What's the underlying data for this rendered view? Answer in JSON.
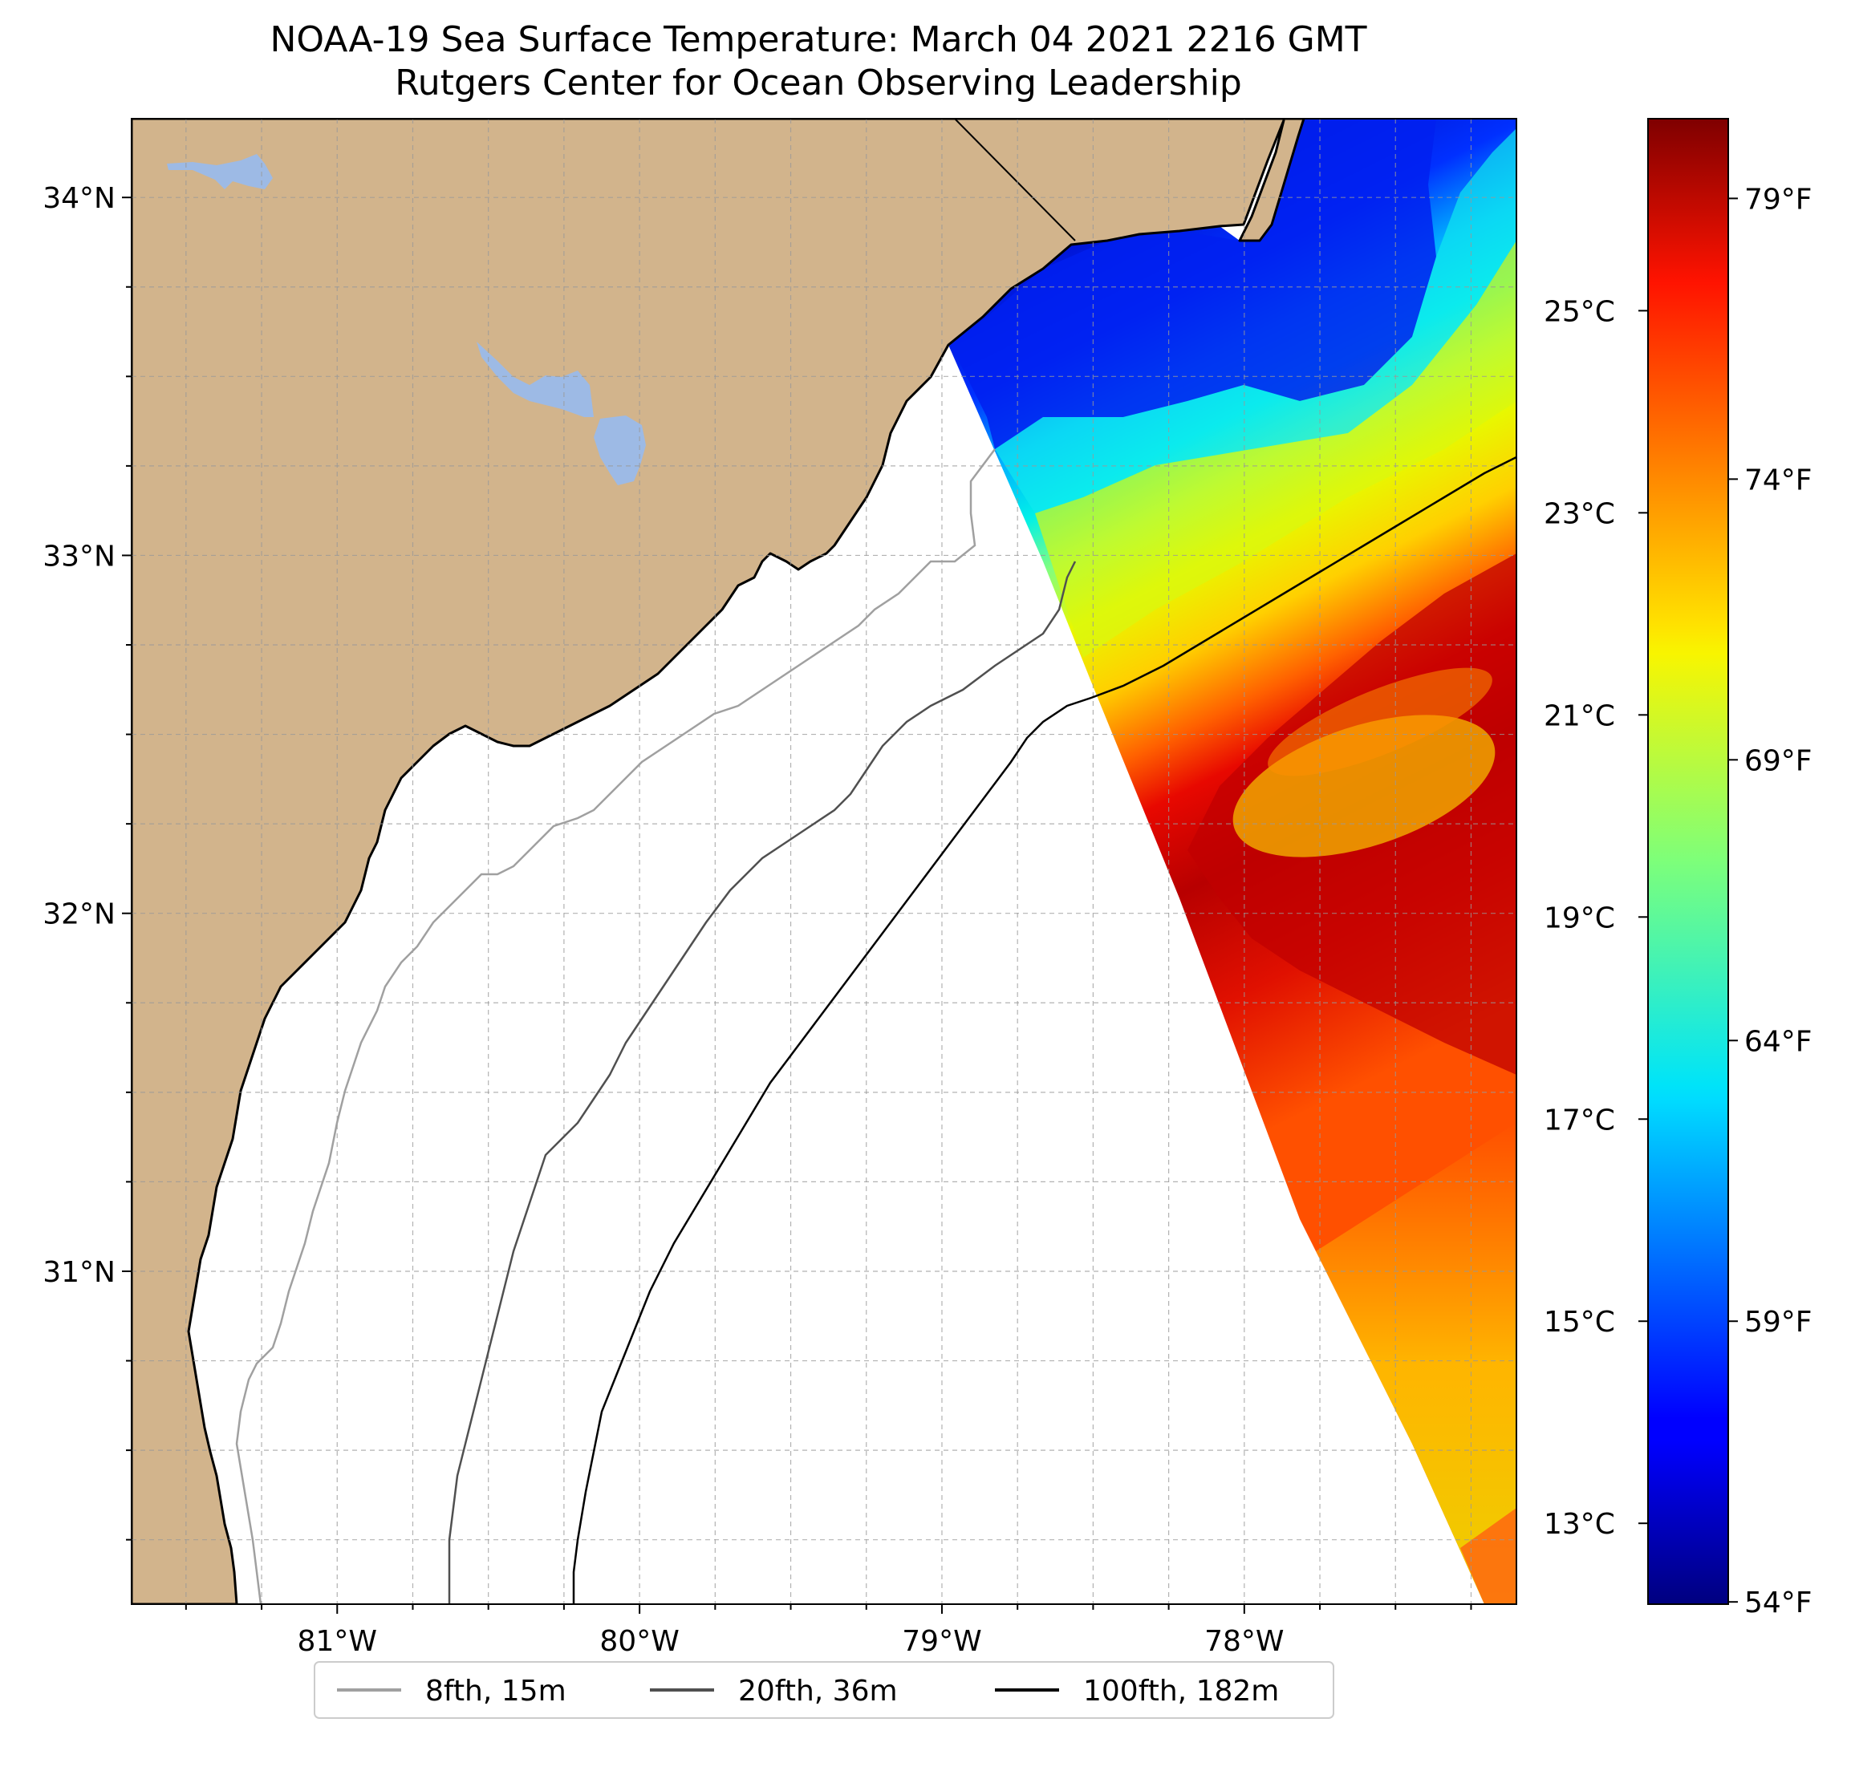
{
  "title": {
    "line1": "NOAA-19 Sea Surface Temperature: March 04 2021 2216 GMT",
    "line2": "Rutgers Center for Ocean Observing Leadership"
  },
  "map": {
    "lon_range": [
      -81.68,
      -77.1
    ],
    "lat_range": [
      30.07,
      34.22
    ],
    "lat_labels": [
      {
        "value": 34,
        "text": "34°N"
      },
      {
        "value": 33,
        "text": "33°N"
      },
      {
        "value": 32,
        "text": "32°N"
      },
      {
        "value": 31,
        "text": "31°N"
      }
    ],
    "lon_labels": [
      {
        "value": -81,
        "text": "81°W"
      },
      {
        "value": -80,
        "text": "80°W"
      },
      {
        "value": -79,
        "text": "79°W"
      },
      {
        "value": -78,
        "text": "78°W"
      }
    ],
    "gridline_step_deg": 0.25,
    "gridline_style": "dashed",
    "land_color": "#D2B48C",
    "lake_color": "#9DBAE5",
    "ocean_color": "#FFFFFF"
  },
  "colorbar": {
    "colormap": "jet",
    "celsius_range": [
      12.2,
      26.9
    ],
    "celsius_ticks": [
      {
        "value": 13,
        "text": "13°C"
      },
      {
        "value": 15,
        "text": "15°C"
      },
      {
        "value": 17,
        "text": "17°C"
      },
      {
        "value": 19,
        "text": "19°C"
      },
      {
        "value": 21,
        "text": "21°C"
      },
      {
        "value": 23,
        "text": "23°C"
      },
      {
        "value": 25,
        "text": "25°C"
      }
    ],
    "fahrenheit_ticks": [
      {
        "value": 54,
        "text": "54°F"
      },
      {
        "value": 59,
        "text": "59°F"
      },
      {
        "value": 64,
        "text": "64°F"
      },
      {
        "value": 69,
        "text": "69°F"
      },
      {
        "value": 74,
        "text": "74°F"
      },
      {
        "value": 79,
        "text": "79°F"
      }
    ]
  },
  "legend": {
    "items": [
      {
        "label": "8fth, 15m",
        "color": "#A0A0A0"
      },
      {
        "label": "20fth, 36m",
        "color": "#505050"
      },
      {
        "label": "100fth, 182m",
        "color": "#000000"
      }
    ]
  }
}
